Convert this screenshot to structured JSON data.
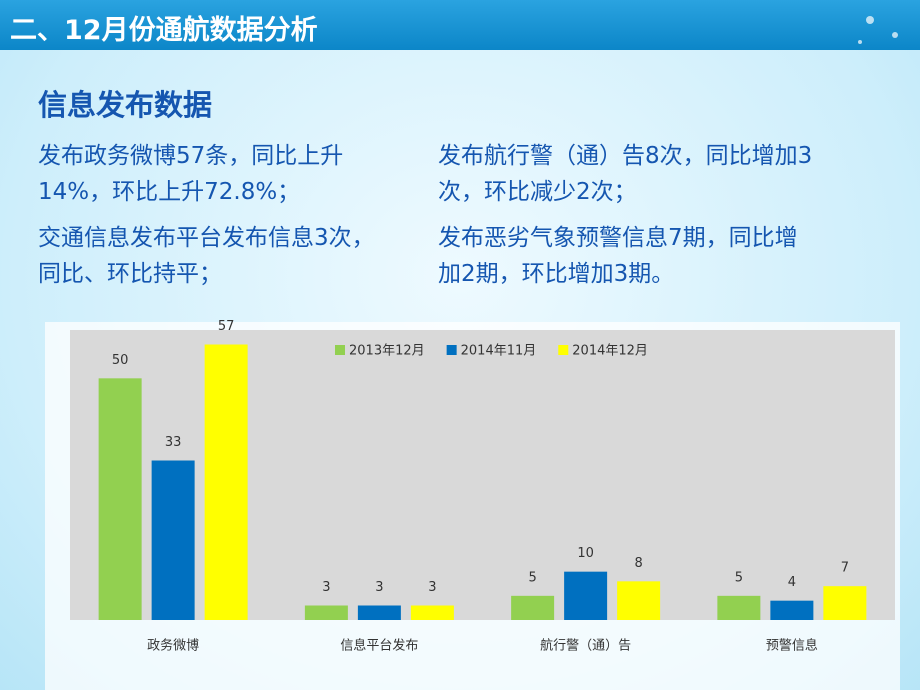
{
  "header": {
    "title": "二、12月份通航数据分析"
  },
  "section": {
    "heading": "信息发布数据",
    "left": [
      [
        "发布政务微博57条，同比上升",
        "14%，环比上升72.8%；"
      ],
      [
        "交通信息发布平台发布信息3次，",
        "同比、环比持平；"
      ]
    ],
    "right": [
      [
        "发布航行警（通）告8次，同比增加3",
        "次，环比减少2次；"
      ],
      [
        "发布恶劣气象预警信息7期，同比增",
        "加2期，环比增加3期。"
      ]
    ]
  },
  "chart_data": {
    "type": "bar",
    "categories": [
      "政务微博",
      "信息平台发布",
      "航行警（通）告",
      "预警信息"
    ],
    "series": [
      {
        "name": "2013年12月",
        "color": "#92d050",
        "values": [
          50,
          3,
          5,
          5
        ]
      },
      {
        "name": "2014年11月",
        "color": "#0070c0",
        "values": [
          33,
          3,
          10,
          4
        ]
      },
      {
        "name": "2014年12月",
        "color": "#ffff00",
        "values": [
          57,
          3,
          8,
          7
        ]
      }
    ],
    "ylim": [
      0,
      60
    ],
    "legend": "top"
  }
}
